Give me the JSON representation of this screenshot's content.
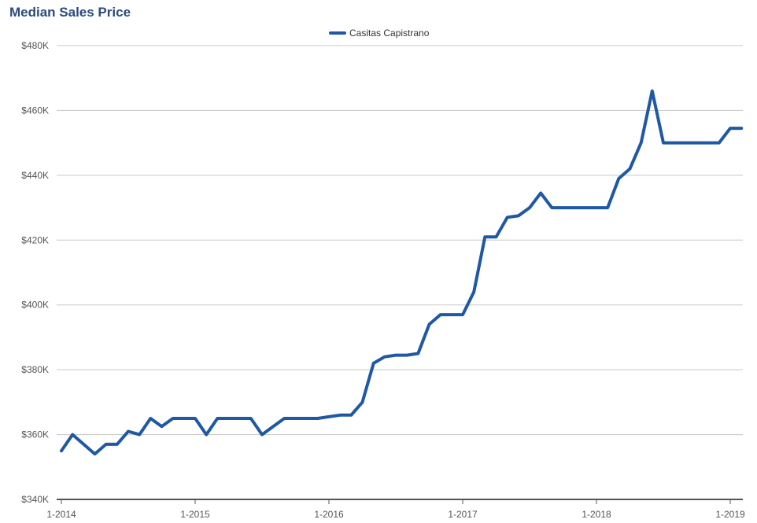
{
  "chart_data": {
    "type": "line",
    "title": "Median Sales Price",
    "xlabel": "",
    "ylabel": "",
    "ylim": [
      340000,
      480000
    ],
    "y_ticks": [
      340000,
      360000,
      380000,
      400000,
      420000,
      440000,
      460000,
      480000
    ],
    "y_tick_labels": [
      "$340K",
      "$360K",
      "$380K",
      "$400K",
      "$420K",
      "$440K",
      "$460K",
      "$480K"
    ],
    "x_tick_labels": [
      "1-2014",
      "1-2015",
      "1-2016",
      "1-2017",
      "1-2018",
      "1-2019"
    ],
    "x_range": [
      "2014-01",
      "2019-02"
    ],
    "grid": true,
    "legend_position": "top-center",
    "line_color": "#1f58a5",
    "series": [
      {
        "name": "Casitas Capistrano",
        "x": [
          "2014-01",
          "2014-02",
          "2014-03",
          "2014-04",
          "2014-05",
          "2014-06",
          "2014-07",
          "2014-08",
          "2014-09",
          "2014-10",
          "2014-11",
          "2014-12",
          "2015-01",
          "2015-02",
          "2015-03",
          "2015-04",
          "2015-05",
          "2015-06",
          "2015-07",
          "2015-08",
          "2015-09",
          "2015-10",
          "2015-11",
          "2015-12",
          "2016-01",
          "2016-02",
          "2016-03",
          "2016-04",
          "2016-05",
          "2016-06",
          "2016-07",
          "2016-08",
          "2016-09",
          "2016-10",
          "2016-11",
          "2016-12",
          "2017-01",
          "2017-02",
          "2017-03",
          "2017-04",
          "2017-05",
          "2017-06",
          "2017-07",
          "2017-08",
          "2017-09",
          "2017-10",
          "2017-11",
          "2017-12",
          "2018-01",
          "2018-02",
          "2018-03",
          "2018-04",
          "2018-05",
          "2018-06",
          "2018-07",
          "2018-08",
          "2018-09",
          "2018-10",
          "2018-11",
          "2018-12",
          "2019-01",
          "2019-02"
        ],
        "values": [
          355000,
          360000,
          357000,
          354000,
          357000,
          357000,
          361000,
          360000,
          365000,
          362500,
          365000,
          365000,
          365000,
          360000,
          365000,
          365000,
          365000,
          365000,
          360000,
          362500,
          365000,
          365000,
          365000,
          365000,
          365500,
          366000,
          366000,
          370000,
          382000,
          384000,
          384500,
          384500,
          385000,
          394000,
          397000,
          397000,
          397000,
          404000,
          421000,
          421000,
          427000,
          427500,
          430000,
          434500,
          430000,
          430000,
          430000,
          430000,
          430000,
          430000,
          439000,
          442000,
          450000,
          466000,
          450000,
          450000,
          450000,
          450000,
          450000,
          450000,
          454500,
          454500
        ]
      }
    ]
  }
}
